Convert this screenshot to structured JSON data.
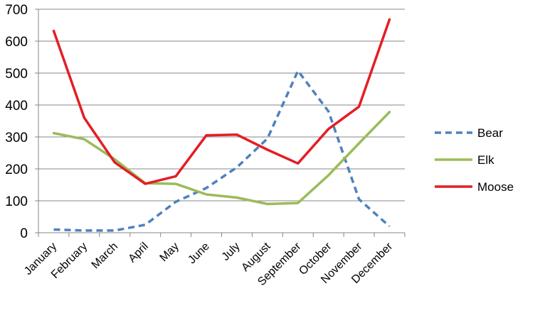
{
  "chart_data": {
    "type": "line",
    "categories": [
      "January",
      "February",
      "March",
      "April",
      "May",
      "June",
      "July",
      "August",
      "September",
      "October",
      "November",
      "December"
    ],
    "ylim": [
      0,
      700
    ],
    "yticks": [
      0,
      100,
      200,
      300,
      400,
      500,
      600,
      700
    ],
    "grid": "horizontal",
    "legend_position": "right",
    "series": [
      {
        "name": "Bear",
        "color": "#4F81BD",
        "style": "dashed",
        "values": [
          10,
          7,
          7,
          25,
          97,
          140,
          205,
          295,
          507,
          380,
          105,
          20
        ]
      },
      {
        "name": "Elk",
        "color": "#9BBB59",
        "style": "solid",
        "values": [
          312,
          293,
          230,
          155,
          153,
          120,
          110,
          90,
          93,
          180,
          280,
          378
        ]
      },
      {
        "name": "Moose",
        "color": "#E31E24",
        "style": "solid",
        "values": [
          632,
          360,
          220,
          153,
          177,
          305,
          307,
          260,
          217,
          325,
          395,
          668
        ]
      }
    ]
  }
}
